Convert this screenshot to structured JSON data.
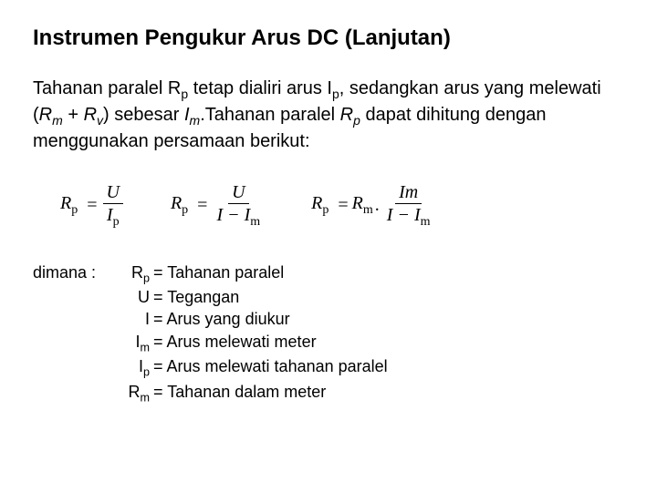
{
  "title": "Instrumen Pengukur Arus DC (Lanjutan)",
  "paragraph": {
    "t1": "Tahanan paralel R",
    "sub1": "p",
    "t2": " tetap dialiri arus I",
    "sub2": "p",
    "t3": ", sedangkan arus yang melewati (",
    "rm": "R",
    "rmsub": "m",
    "plus": " + ",
    "rv": "R",
    "rvsub": "v",
    "t4": ") sebesar ",
    "im": "I",
    "imsub": "m",
    "t5": ".Tahanan paralel ",
    "rp2": "R",
    "rp2sub": "p",
    "t6": " dapat dihitung dengan menggunakan persamaan berikut:"
  },
  "eq1": {
    "lhs_R": "R",
    "lhs_sub": "p",
    "eq": "=",
    "num": "U",
    "den_I": "I",
    "den_sub": "p"
  },
  "eq2": {
    "lhs_R": "R",
    "lhs_sub": "p",
    "eq": "=",
    "num": "U",
    "den_a": "I − I",
    "den_sub": "m"
  },
  "eq3": {
    "lhs_R": "R",
    "lhs_sub": "p",
    "eq": "=",
    "rhs_R": "R",
    "rhs_sub": "m",
    "dot": ".",
    "num_I": "Im",
    "den_a": "I − I",
    "den_sub": "m"
  },
  "legend": {
    "label": "dimana :",
    "d1": {
      "sym": "R",
      "sub": "p",
      "eq": " = Tahanan paralel"
    },
    "d2": {
      "sym": "U",
      "eq": "  = Tegangan"
    },
    "d3": {
      "sym": "I",
      "eq": "  = Arus yang diukur"
    },
    "d4": {
      "sym": "I",
      "sub": "m",
      "eq": " = Arus melewati meter"
    },
    "d5": {
      "sym": "I",
      "sub": "p",
      "eq": " = Arus melewati tahanan paralel"
    },
    "d6": {
      "sym": "R",
      "sub": "m",
      "eq": " = Tahanan dalam meter"
    }
  }
}
